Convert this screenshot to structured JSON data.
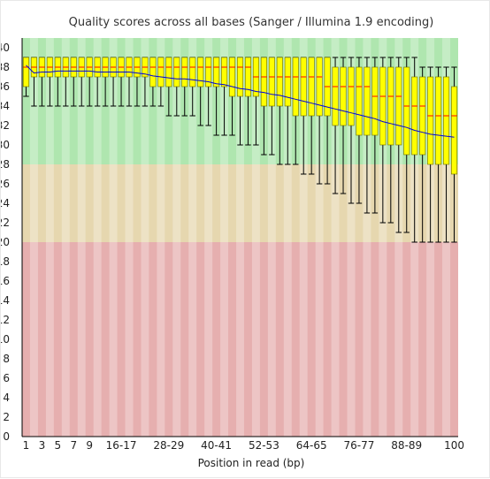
{
  "chart_data": {
    "type": "boxplot",
    "title": "Quality scores across all bases (Sanger / Illumina 1.9 encoding)",
    "xlabel": "Position in read (bp)",
    "ylabel": "",
    "ylim": [
      0,
      41
    ],
    "yticks": [
      0,
      2,
      4,
      6,
      8,
      10,
      12,
      14,
      16,
      18,
      20,
      22,
      24,
      26,
      28,
      30,
      32,
      34,
      36,
      38,
      40
    ],
    "zones": [
      {
        "from": 0,
        "to": 20,
        "color": "#e6afaf"
      },
      {
        "from": 20,
        "to": 28,
        "color": "#e6d7af"
      },
      {
        "from": 28,
        "to": 41,
        "color": "#afe6af"
      }
    ],
    "categories": [
      "1",
      "2",
      "3",
      "4",
      "5",
      "6",
      "7",
      "8",
      "9",
      "10-11",
      "12-13",
      "14-15",
      "16-17",
      "18-19",
      "20-21",
      "22-23",
      "24-25",
      "26-27",
      "28-29",
      "30-31",
      "32-33",
      "34-35",
      "36-37",
      "38-39",
      "40-41",
      "42-43",
      "44-45",
      "46-47",
      "48-49",
      "50-51",
      "52-53",
      "54-55",
      "56-57",
      "58-59",
      "60-61",
      "62-63",
      "64-65",
      "66-67",
      "68-69",
      "70-71",
      "72-73",
      "74-75",
      "76-77",
      "78-79",
      "80-81",
      "82-83",
      "84-85",
      "86-87",
      "88-89",
      "90-91",
      "92-93",
      "94-95",
      "96-97",
      "98-99",
      "100"
    ],
    "xtick_labels": [
      "1",
      "3",
      "5",
      "7",
      "9",
      "16-17",
      "28-29",
      "40-41",
      "52-53",
      "64-65",
      "76-77",
      "88-89",
      "100"
    ],
    "q1": [
      36,
      37,
      37,
      37,
      37,
      37,
      37,
      37,
      37,
      37,
      37,
      37,
      37,
      37,
      37,
      37,
      36,
      36,
      36,
      36,
      36,
      36,
      36,
      36,
      36,
      36,
      35,
      35,
      35,
      35,
      34,
      34,
      34,
      34,
      33,
      33,
      33,
      33,
      33,
      32,
      32,
      32,
      31,
      31,
      31,
      30,
      30,
      30,
      29,
      29,
      29,
      28,
      28,
      28,
      27
    ],
    "q3": [
      39,
      39,
      39,
      39,
      39,
      39,
      39,
      39,
      39,
      39,
      39,
      39,
      39,
      39,
      39,
      39,
      39,
      39,
      39,
      39,
      39,
      39,
      39,
      39,
      39,
      39,
      39,
      39,
      39,
      39,
      39,
      39,
      39,
      39,
      39,
      39,
      39,
      39,
      39,
      38,
      38,
      38,
      38,
      38,
      38,
      38,
      38,
      38,
      38,
      37,
      37,
      37,
      37,
      37,
      36
    ],
    "median": [
      38,
      38,
      38,
      38,
      38,
      38,
      38,
      38,
      38,
      38,
      38,
      38,
      38,
      38,
      38,
      38,
      38,
      38,
      38,
      38,
      38,
      38,
      38,
      38,
      38,
      38,
      38,
      38,
      38,
      37,
      37,
      37,
      37,
      37,
      37,
      37,
      37,
      37,
      36,
      36,
      36,
      36,
      36,
      36,
      35,
      35,
      35,
      35,
      34,
      34,
      34,
      33,
      33,
      33,
      33
    ],
    "whisker_low": [
      35,
      34,
      34,
      34,
      34,
      34,
      34,
      34,
      34,
      34,
      34,
      34,
      34,
      34,
      34,
      34,
      34,
      34,
      33,
      33,
      33,
      33,
      32,
      32,
      31,
      31,
      31,
      30,
      30,
      30,
      29,
      29,
      28,
      28,
      28,
      27,
      27,
      26,
      26,
      25,
      25,
      24,
      24,
      23,
      23,
      22,
      22,
      21,
      21,
      20,
      20,
      20,
      20,
      20,
      20
    ],
    "whisker_high": [
      39,
      39,
      39,
      39,
      39,
      39,
      39,
      39,
      39,
      39,
      39,
      39,
      39,
      39,
      39,
      39,
      39,
      39,
      39,
      39,
      39,
      39,
      39,
      39,
      39,
      39,
      39,
      39,
      39,
      39,
      39,
      39,
      39,
      39,
      39,
      39,
      39,
      39,
      39,
      39,
      39,
      39,
      39,
      39,
      39,
      39,
      39,
      39,
      39,
      39,
      38,
      38,
      38,
      38,
      38
    ],
    "mean": [
      38.2,
      37.4,
      37.5,
      37.5,
      37.6,
      37.6,
      37.6,
      37.6,
      37.6,
      37.5,
      37.5,
      37.5,
      37.5,
      37.5,
      37.4,
      37.3,
      37.1,
      37.0,
      36.9,
      36.8,
      36.8,
      36.7,
      36.6,
      36.5,
      36.3,
      36.2,
      36.0,
      35.8,
      35.7,
      35.5,
      35.4,
      35.2,
      35.1,
      34.9,
      34.7,
      34.5,
      34.3,
      34.1,
      33.9,
      33.7,
      33.5,
      33.3,
      33.1,
      32.9,
      32.7,
      32.4,
      32.2,
      32.0,
      31.8,
      31.5,
      31.3,
      31.1,
      31.0,
      30.9,
      30.8
    ],
    "colors": {
      "box": "#ffff00",
      "box_stroke": "#6b6b00",
      "median": "#ff0000",
      "mean": "#0000dd",
      "whisker": "#000000"
    }
  }
}
